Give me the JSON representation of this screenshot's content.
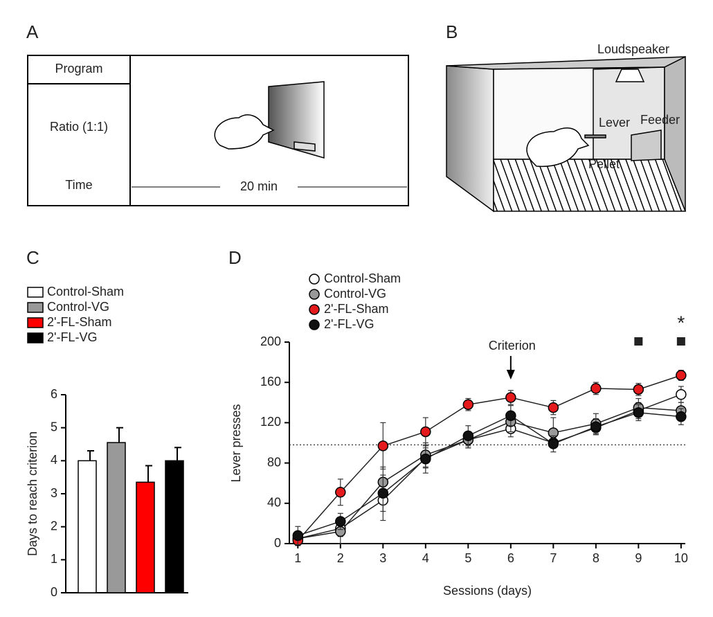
{
  "panel_labels": [
    "A",
    "B",
    "C",
    "D"
  ],
  "diagram_a": {
    "header": "Program",
    "schedule": "Ratio (1:1)",
    "time": "Time",
    "duration": "20 min"
  },
  "diagram_b": {
    "loudspeaker": "Loudspeaker",
    "lever": "Lever",
    "feeder": "Feeder",
    "pellet": "Pellet"
  },
  "chart_data": [
    {
      "type": "bar",
      "ylabel": "Days to reach criterion",
      "categories": [
        "Control-Sham",
        "Control-VG",
        "2'-FL-Sham",
        "2'-FL-VG"
      ],
      "values": [
        4.0,
        4.55,
        3.35,
        4.0
      ],
      "errors": [
        0.3,
        0.45,
        0.5,
        0.4
      ],
      "colors": [
        "#ffffff",
        "#999999",
        "#ff0000",
        "#000000"
      ],
      "ylim": [
        0,
        6
      ],
      "yticks": [
        0,
        1,
        2,
        3,
        4,
        5,
        6
      ]
    },
    {
      "type": "line",
      "xlabel": "Sessions (days)",
      "ylabel": "Lever presses",
      "x": [
        1,
        2,
        3,
        4,
        5,
        6,
        7,
        8,
        9,
        10
      ],
      "xlim": [
        0.8,
        10.1
      ],
      "xticks": [
        1,
        2,
        3,
        4,
        5,
        6,
        7,
        8,
        9,
        10
      ],
      "ylim": [
        0,
        200
      ],
      "yticks": [
        0,
        40,
        80,
        120,
        160,
        200
      ],
      "reference_line": 98,
      "annotation": "Criterion",
      "annotation_x": 6,
      "significance": "*",
      "significance_x": 10,
      "square_markers_x": [
        9,
        10
      ],
      "series": [
        {
          "name": "Control-Sham",
          "color": "#ffffff",
          "values": [
            5,
            15,
            43,
            85,
            103,
            114,
            100,
            115,
            132,
            148
          ],
          "errors": [
            5,
            8,
            20,
            10,
            8,
            8,
            5,
            6,
            8,
            8
          ]
        },
        {
          "name": "Control-VG",
          "color": "#999999",
          "values": [
            5,
            12,
            61,
            88,
            103,
            121,
            110,
            119,
            135,
            132
          ],
          "errors": [
            6,
            12,
            15,
            12,
            8,
            10,
            15,
            10,
            9,
            8
          ]
        },
        {
          "name": "2'-FL-Sham",
          "color": "#e41a1c",
          "values": [
            3,
            51,
            97,
            111,
            138,
            145,
            135,
            154,
            153,
            167
          ],
          "errors": [
            5,
            13,
            23,
            14,
            6,
            7,
            7,
            6,
            6,
            5
          ]
        },
        {
          "name": "2'-FL-VG",
          "color": "#111111",
          "values": [
            8,
            22,
            50,
            84,
            107,
            127,
            99,
            116,
            130,
            126
          ],
          "errors": [
            9,
            8,
            18,
            14,
            10,
            10,
            8,
            8,
            8,
            8
          ]
        }
      ]
    }
  ]
}
